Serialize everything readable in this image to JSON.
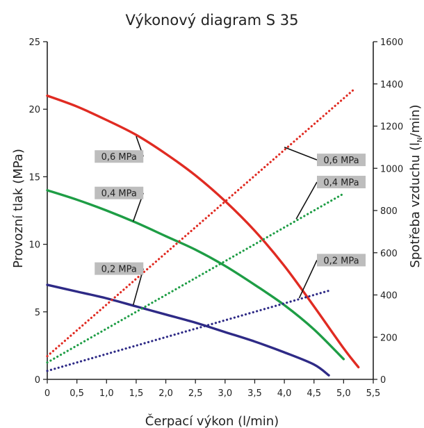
{
  "chart_data": {
    "type": "line",
    "title": "Výkonový diagram S 35",
    "xlabel": "Čerpací výkon (l/min)",
    "ylabel_left": "Provozní tlak (MPa)",
    "ylabel_right": "Spotřeba vzduchu (l",
    "ylabel_right_sub": "N",
    "ylabel_right_end": "/min)",
    "xlim": [
      0,
      5.5
    ],
    "ylim_left": [
      0,
      25
    ],
    "ylim_right": [
      0,
      1600
    ],
    "x_ticks": [
      "0",
      "0,5",
      "1,0",
      "1,5",
      "2,0",
      "2,5",
      "3,0",
      "3,5",
      "4,0",
      "4,5",
      "5,0",
      "5,5"
    ],
    "y_left_ticks": [
      "0",
      "5",
      "10",
      "15",
      "20",
      "25"
    ],
    "y_right_ticks": [
      "0",
      "200",
      "400",
      "600",
      "800",
      "1000",
      "1200",
      "1400",
      "1600"
    ],
    "series": [
      {
        "name": "0,6 MPa",
        "axis": "left",
        "style": "solid",
        "color": "#e02b22",
        "x": [
          0,
          0.5,
          1.0,
          1.5,
          2.0,
          2.5,
          3.0,
          3.5,
          4.0,
          4.5,
          5.0,
          5.25
        ],
        "y": [
          21.0,
          20.2,
          19.2,
          18.1,
          16.7,
          15.1,
          13.2,
          11.0,
          8.4,
          5.4,
          2.3,
          0.9
        ]
      },
      {
        "name": "0,4 MPa",
        "axis": "left",
        "style": "solid",
        "color": "#1e9d45",
        "x": [
          0,
          0.5,
          1.0,
          1.5,
          2.0,
          2.5,
          3.0,
          3.5,
          4.0,
          4.5,
          5.0
        ],
        "y": [
          14.0,
          13.3,
          12.5,
          11.6,
          10.6,
          9.6,
          8.4,
          7.0,
          5.5,
          3.7,
          1.5
        ]
      },
      {
        "name": "0,2 MPa",
        "axis": "left",
        "style": "solid",
        "color": "#2e2a86",
        "x": [
          0,
          0.5,
          1.0,
          1.5,
          2.0,
          2.5,
          3.0,
          3.5,
          4.0,
          4.5,
          4.75
        ],
        "y": [
          7.0,
          6.5,
          6.0,
          5.4,
          4.8,
          4.2,
          3.5,
          2.8,
          2.0,
          1.1,
          0.3
        ]
      },
      {
        "name": "0,6 MPa",
        "axis": "right",
        "style": "dotted",
        "color": "#e02b22",
        "x": [
          0,
          5.2
        ],
        "y": [
          110,
          1380
        ]
      },
      {
        "name": "0,4 MPa",
        "axis": "right",
        "style": "dotted",
        "color": "#1e9d45",
        "x": [
          0,
          5.0
        ],
        "y": [
          80,
          880
        ]
      },
      {
        "name": "0,2 MPa",
        "axis": "right",
        "style": "dotted",
        "color": "#2e2a86",
        "x": [
          0,
          4.75
        ],
        "y": [
          40,
          420
        ]
      }
    ],
    "annotations": [
      {
        "text": "0,6 MPa",
        "box_x": 0.8,
        "box_y": 16.5,
        "point_x": 1.5,
        "point_y": 18.0,
        "axis": "left"
      },
      {
        "text": "0,4 MPa",
        "box_x": 0.8,
        "box_y": 13.8,
        "point_x": 1.45,
        "point_y": 11.7,
        "axis": "left"
      },
      {
        "text": "0,2 MPa",
        "box_x": 0.8,
        "box_y": 8.2,
        "point_x": 1.45,
        "point_y": 5.5,
        "axis": "left"
      },
      {
        "text": "0,6 MPa",
        "box_x": 4.55,
        "box_y": 1040,
        "point_x": 4.0,
        "point_y": 1100,
        "axis": "right"
      },
      {
        "text": "0,4 MPa",
        "box_x": 4.55,
        "box_y": 935,
        "point_x": 4.2,
        "point_y": 760,
        "axis": "right"
      },
      {
        "text": "0,2 MPa",
        "box_x": 4.55,
        "box_y": 565,
        "point_x": 4.25,
        "point_y": 385,
        "axis": "right"
      }
    ],
    "grid": false
  }
}
